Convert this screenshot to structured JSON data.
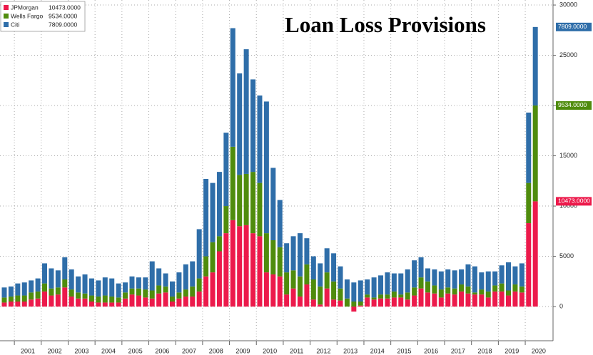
{
  "chart_data": {
    "type": "stacked-bar",
    "title": "Loan Loss Provisions",
    "categories": [
      null,
      null,
      null,
      null,
      null,
      null,
      null,
      null,
      null,
      null,
      null,
      null,
      null,
      null,
      null,
      null,
      null,
      null,
      null,
      null,
      null,
      null,
      null,
      null,
      null,
      null,
      null,
      null,
      null,
      null,
      null,
      null,
      null,
      null,
      null,
      null,
      null,
      null,
      null,
      null,
      null,
      null,
      null,
      null,
      null,
      null,
      null,
      null,
      null,
      null,
      null,
      null,
      null,
      null,
      null,
      null,
      null,
      null,
      null,
      null,
      null,
      null,
      null,
      null,
      null,
      null,
      null,
      null,
      null,
      null,
      null,
      null,
      null,
      null,
      null,
      null,
      null,
      null,
      null,
      null
    ],
    "years": [
      "2001",
      "2002",
      "2003",
      "2004",
      "2005",
      "2006",
      "2007",
      "2008",
      "2009",
      "2010",
      "2011",
      "2012",
      "2013",
      "2014",
      "2015",
      "2016",
      "2017",
      "2018",
      "2019",
      "2020"
    ],
    "series": [
      {
        "name": "JPMorgan",
        "color": "#ec1a4b",
        "last_label": "10473.0000",
        "values": [
          400,
          500,
          500,
          500,
          700,
          800,
          1500,
          1100,
          1200,
          1900,
          1000,
          800,
          800,
          500,
          400,
          400,
          400,
          400,
          800,
          1200,
          1100,
          900,
          800,
          1300,
          1400,
          500,
          800,
          1000,
          1000,
          1500,
          3000,
          3400,
          5500,
          7300,
          8600,
          8000,
          8100,
          7300,
          7000,
          3400,
          3200,
          3000,
          1200,
          1800,
          1000,
          2200,
          700,
          200,
          1800,
          700,
          600,
          0,
          -500,
          100,
          900,
          700,
          800,
          800,
          900,
          900,
          700,
          1100,
          1800,
          1400,
          1300,
          900,
          1300,
          1200,
          1500,
          1300,
          1200,
          1200,
          900,
          1500,
          1500,
          1100,
          1500,
          1400,
          8300,
          10473
        ]
      },
      {
        "name": "Wells Fargo",
        "color": "#4f8c0d",
        "last_label": "9534.0000",
        "values": [
          500,
          500,
          600,
          600,
          700,
          700,
          800,
          700,
          700,
          800,
          700,
          600,
          500,
          600,
          600,
          700,
          600,
          500,
          600,
          600,
          700,
          800,
          800,
          800,
          600,
          500,
          600,
          700,
          1000,
          1300,
          2000,
          3000,
          1500,
          2700,
          7300,
          5100,
          5100,
          6100,
          5300,
          3900,
          3400,
          2900,
          2200,
          1800,
          2000,
          2000,
          2000,
          1800,
          1600,
          1800,
          1200,
          800,
          500,
          400,
          300,
          200,
          400,
          400,
          600,
          300,
          700,
          800,
          1100,
          1100,
          800,
          800,
          600,
          600,
          700,
          700,
          200,
          500,
          600,
          600,
          800,
          500,
          700,
          600,
          4000,
          9534
        ]
      },
      {
        "name": "Citi",
        "color": "#2f6ea9",
        "last_label": "7809.0000",
        "values": [
          1000,
          1000,
          1200,
          1300,
          1200,
          1300,
          2000,
          2000,
          1700,
          2200,
          2000,
          1600,
          1900,
          1700,
          1600,
          1800,
          1800,
          1400,
          1000,
          1200,
          1100,
          1200,
          2900,
          1700,
          1300,
          1500,
          2000,
          2500,
          2500,
          4900,
          7700,
          5900,
          6400,
          7300,
          11800,
          10100,
          12400,
          9200,
          8700,
          13100,
          7200,
          4700,
          2900,
          3400,
          4300,
          2600,
          2300,
          2300,
          2400,
          2800,
          2200,
          1900,
          1900,
          2100,
          1500,
          2000,
          1900,
          2200,
          1800,
          2100,
          2300,
          2700,
          2000,
          1300,
          1600,
          1800,
          1800,
          1800,
          1500,
          2200,
          2600,
          1700,
          2000,
          1400,
          1800,
          2800,
          1800,
          2300,
          7000,
          7809
        ]
      }
    ],
    "ylim": [
      -3400,
      30500
    ],
    "yticks": [
      0,
      5000,
      10000,
      15000,
      20000,
      25000,
      30000
    ],
    "grid": true
  }
}
